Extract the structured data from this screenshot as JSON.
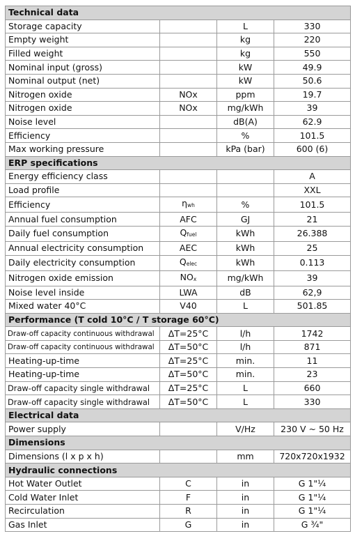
{
  "sections": [
    {
      "title": "Technical data",
      "rows": [
        {
          "label": "Storage capacity",
          "symbol": "",
          "unit": "L",
          "value": "330"
        },
        {
          "label": "Empty weight",
          "symbol": "",
          "unit": "kg",
          "value": "220"
        },
        {
          "label": "Filled weight",
          "symbol": "",
          "unit": "kg",
          "value": "550"
        },
        {
          "label": "Nominal input (gross)",
          "symbol": "",
          "unit": "kW",
          "value": "49.9"
        },
        {
          "label": "Nominal output (net)",
          "symbol": "",
          "unit": "kW",
          "value": "50.6"
        },
        {
          "label": "Nitrogen oxide",
          "symbol": "NOx",
          "unit": "ppm",
          "value": "19.7"
        },
        {
          "label": "Nitrogen oxide",
          "symbol": "NOx",
          "unit": "mg/kWh",
          "value": "39"
        },
        {
          "label": "Noise level",
          "symbol": "",
          "unit": "dB(A)",
          "value": "62.9"
        },
        {
          "label": "Efficiency",
          "symbol": "",
          "unit": "%",
          "value": "101.5"
        },
        {
          "label": "Max working pressure",
          "symbol": "",
          "unit": "kPa (bar)",
          "value": "600 (6)"
        }
      ]
    },
    {
      "title": "ERP specifications",
      "rows": [
        {
          "label": "Energy efficiency class",
          "symbol": "",
          "unit": "",
          "value": "A"
        },
        {
          "label": "Load profile",
          "symbol": "",
          "unit": "",
          "value": "XXL"
        },
        {
          "label": "Efficiency",
          "symbol": "η",
          "symbol_sub": "wh",
          "unit": "%",
          "value": "101.5"
        },
        {
          "label": "Annual fuel consumption",
          "symbol": "AFC",
          "unit": "GJ",
          "value": "21"
        },
        {
          "label": "Daily fuel consumption",
          "symbol": "Q",
          "symbol_sub": "fuel",
          "unit": "kWh",
          "value": "26.388"
        },
        {
          "label": "Annual electricity consumption",
          "symbol": "AEC",
          "unit": "kWh",
          "value": "25"
        },
        {
          "label": "Daily electricity consumption",
          "symbol": "Q",
          "symbol_sub": "elec",
          "unit": "kWh",
          "value": "0.113"
        },
        {
          "label": "Nitrogen oxide emission",
          "symbol": "NO",
          "symbol_sub": "x",
          "unit": "mg/kWh",
          "value": "39"
        },
        {
          "label": "Noise level inside",
          "symbol": "LWA",
          "unit": "dB",
          "value": "62,9"
        },
        {
          "label": "Mixed water 40°C",
          "symbol": "V40",
          "unit": "L",
          "value": "501.85"
        }
      ]
    },
    {
      "title": "Performance (T cold 10°C / T storage 60°C)",
      "small": true,
      "rows": [
        {
          "label": "Draw-off capacity continuous withdrawal",
          "symbol": "ΔT=25°C",
          "unit": "l/h",
          "value": "1742"
        },
        {
          "label": "Draw-off capacity continuous withdrawal",
          "symbol": "ΔT=50°C",
          "unit": "l/h",
          "value": "871"
        },
        {
          "label": "Heating-up-time",
          "symbol": "ΔT=25°C",
          "unit": "min.",
          "value": "11",
          "normal": true
        },
        {
          "label": "Heating-up-time",
          "symbol": "ΔT=50°C",
          "unit": "min.",
          "value": "23",
          "normal": true
        },
        {
          "label": "Draw-off capacity single withdrawal",
          "symbol": "ΔT=25°C",
          "unit": "L",
          "value": "660",
          "mid": true
        },
        {
          "label": "Draw-off capacity single withdrawal",
          "symbol": "ΔT=50°C",
          "unit": "L",
          "value": "330",
          "mid": true
        }
      ]
    },
    {
      "title": "Electrical data",
      "rows": [
        {
          "label": "Power supply",
          "symbol": "",
          "unit": "V/Hz",
          "value": "230 V ~ 50 Hz"
        }
      ]
    },
    {
      "title": "Dimensions",
      "rows": [
        {
          "label": "Dimensions (l x p x h)",
          "symbol": "",
          "unit": "mm",
          "value": "720x720x1932"
        }
      ]
    },
    {
      "title": "Hydraulic connections",
      "rows": [
        {
          "label": "Hot Water Outlet",
          "symbol": "C",
          "unit": "in",
          "value": "G 1\"¼"
        },
        {
          "label": "Cold Water Inlet",
          "symbol": "F",
          "unit": "in",
          "value": "G 1\"¼"
        },
        {
          "label": "Recirculation",
          "symbol": "R",
          "unit": "in",
          "value": "G 1\"¼"
        },
        {
          "label": "Gas Inlet",
          "symbol": "G",
          "unit": "in",
          "value": "G ¾\""
        }
      ]
    }
  ]
}
